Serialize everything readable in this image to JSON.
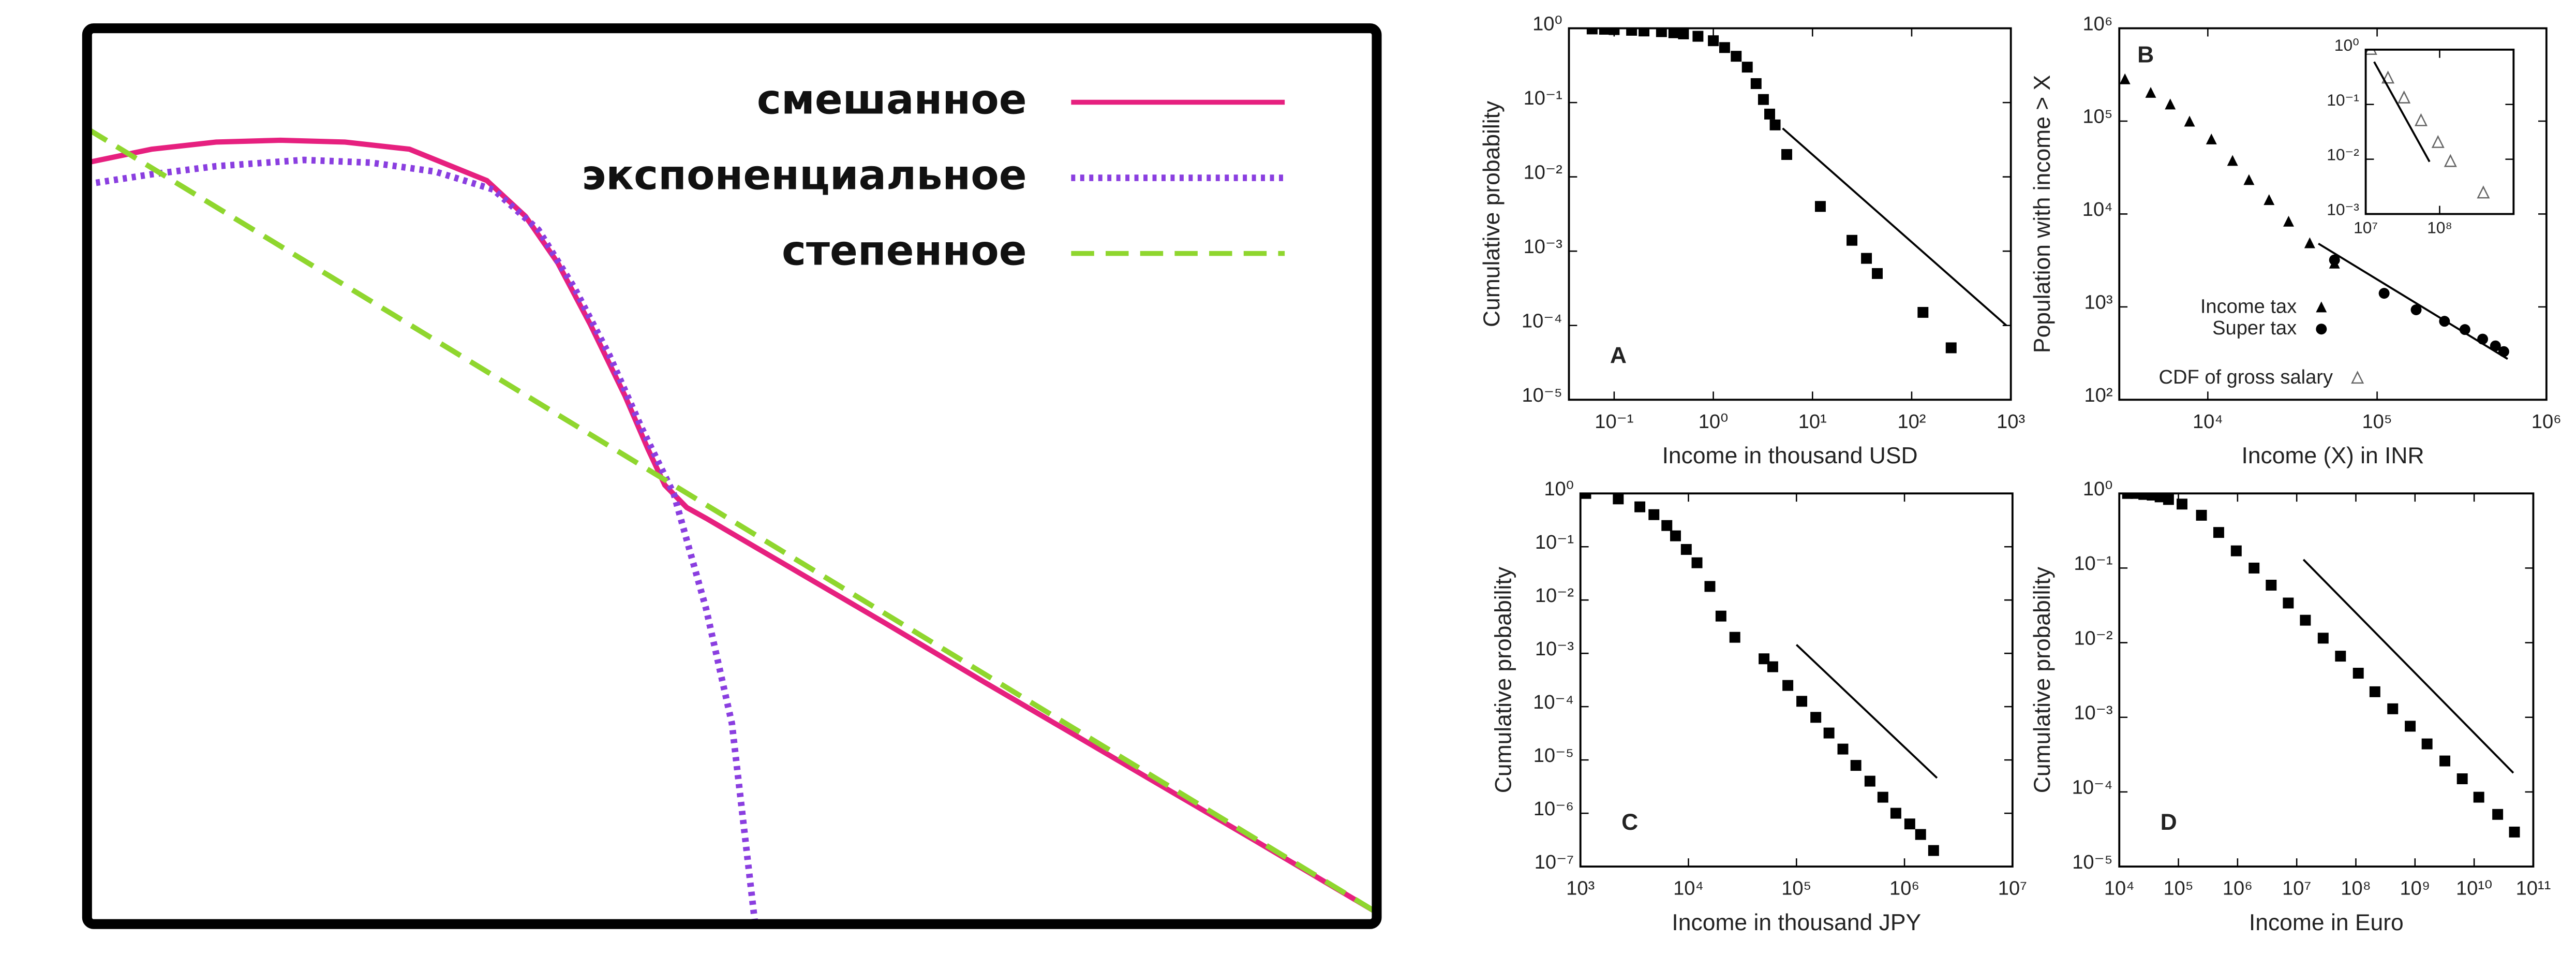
{
  "chart_data": [
    {
      "type": "line",
      "xlim": [
        0,
        100
      ],
      "ylim": [
        0,
        100
      ],
      "legend": "upper right",
      "series": [
        {
          "name": "смешанное",
          "color": "#e6207f",
          "style": "solid",
          "x": [
            0,
            5,
            10,
            15,
            20,
            25,
            31,
            34,
            36.5,
            39,
            41.7,
            43.5,
            44.8,
            46.5,
            48,
            55,
            62,
            69.7,
            76,
            82.4,
            90,
            100
          ],
          "values": [
            85,
            86.5,
            87.3,
            87.5,
            87.3,
            86.5,
            83,
            79,
            73.8,
            67,
            59,
            53,
            49,
            46.5,
            45.3,
            39.4,
            33.5,
            26.9,
            21.6,
            16.2,
            9.8,
            1.3
          ]
        },
        {
          "name": "экспоненциальное",
          "color": "#8a3ee0",
          "style": "dotted",
          "x": [
            0,
            5,
            10,
            16.8,
            22,
            27,
            31.5,
            35,
            37.8,
            40.5,
            43,
            45.5,
            48,
            50,
            51.8
          ],
          "values": [
            82.6,
            83.7,
            84.6,
            85.3,
            85,
            84,
            82,
            77.5,
            71,
            63.5,
            55.4,
            48,
            35.2,
            22.4,
            0
          ]
        },
        {
          "name": "степенное",
          "color": "#8fd62e",
          "style": "dashed",
          "x": [
            0,
            100
          ],
          "values": [
            88.8,
            1.3
          ]
        }
      ]
    },
    {
      "type": "scatter",
      "panel_label": "A",
      "xlabel": "Income in thousand USD",
      "ylabel": "Cumulative probability",
      "xscale": "log",
      "yscale": "log",
      "xlim": [
        0.035,
        1000
      ],
      "ylim": [
        1e-05,
        1
      ],
      "xticks": [
        {
          "value": 0.1,
          "label": "10⁻¹"
        },
        {
          "value": 1,
          "label": "10⁰"
        },
        {
          "value": 10,
          "label": "10¹"
        },
        {
          "value": 100,
          "label": "10²"
        },
        {
          "value": 1000,
          "label": "10³"
        }
      ],
      "yticks": [
        {
          "value": 1e-05,
          "label": "10⁻⁵"
        },
        {
          "value": 0.0001,
          "label": "10⁻⁴"
        },
        {
          "value": 0.001,
          "label": "10⁻³"
        },
        {
          "value": 0.01,
          "label": "10⁻²"
        },
        {
          "value": 0.1,
          "label": "10⁻¹"
        },
        {
          "value": 1,
          "label": "10⁰"
        }
      ],
      "series": [
        {
          "marker": "square",
          "color": "#000000",
          "x": [
            0.06,
            0.08,
            0.1,
            0.15,
            0.2,
            0.3,
            0.4,
            0.5,
            0.7,
            1.0,
            1.3,
            1.7,
            2.2,
            2.7,
            3.2,
            3.7,
            4.2,
            5.5,
            12,
            25,
            35,
            45,
            130,
            250
          ],
          "values": [
            0.98,
            0.97,
            0.96,
            0.94,
            0.92,
            0.9,
            0.87,
            0.84,
            0.78,
            0.68,
            0.55,
            0.42,
            0.3,
            0.18,
            0.11,
            0.07,
            0.05,
            0.02,
            0.004,
            0.0014,
            0.0008,
            0.0005,
            0.00015,
            5e-05
          ]
        },
        {
          "marker": "line",
          "color": "#000000",
          "x": [
            5,
            900
          ],
          "values": [
            0.045,
            0.0001
          ]
        }
      ]
    },
    {
      "type": "scatter",
      "panel_label": "B",
      "xlabel": "Income (X) in INR",
      "ylabel": "Population with income > X",
      "xscale": "log",
      "yscale": "log",
      "xlim": [
        3000,
        1000000
      ],
      "ylim": [
        100,
        1000000
      ],
      "xticks": [
        {
          "value": 10000,
          "label": "10⁴"
        },
        {
          "value": 100000,
          "label": "10⁵"
        },
        {
          "value": 1000000,
          "label": "10⁶"
        }
      ],
      "yticks": [
        {
          "value": 100,
          "label": "10²"
        },
        {
          "value": 1000,
          "label": "10³"
        },
        {
          "value": 10000,
          "label": "10⁴"
        },
        {
          "value": 100000,
          "label": "10⁵"
        },
        {
          "value": 1000000,
          "label": "10⁶"
        }
      ],
      "series": [
        {
          "name": "Income tax",
          "marker": "triangle",
          "color": "#000000",
          "x": [
            3240,
            4600,
            6000,
            7800,
            10500,
            14000,
            17500,
            23000,
            30000,
            40000,
            56000
          ],
          "values": [
            280000,
            200000,
            150000,
            98000,
            63000,
            37000,
            23000,
            14000,
            8200,
            4800,
            2900
          ]
        },
        {
          "name": "Super tax",
          "marker": "circle",
          "color": "#000000",
          "x": [
            56000,
            110000,
            170000,
            250000,
            330000,
            420000,
            500000,
            560000
          ],
          "values": [
            3200,
            1400,
            930,
            700,
            570,
            450,
            380,
            330
          ]
        },
        {
          "marker": "line",
          "color": "#000000",
          "x": [
            45000,
            590000
          ],
          "values": [
            4800,
            275
          ]
        }
      ]
    },
    {
      "type": "scatter",
      "inset": true,
      "xscale": "log",
      "yscale": "log",
      "xlim": [
        10000000,
        1000000000
      ],
      "ylim": [
        0.001,
        1
      ],
      "xticks": [
        {
          "value": 10000000,
          "label": "10⁷"
        },
        {
          "value": 100000000,
          "label": "10⁸"
        }
      ],
      "yticks": [
        {
          "value": 0.001,
          "label": "10⁻³"
        },
        {
          "value": 0.01,
          "label": "10⁻²"
        },
        {
          "value": 0.1,
          "label": "10⁻¹"
        },
        {
          "value": 1,
          "label": "10⁰"
        }
      ],
      "series": [
        {
          "name": "CDF of gross salary",
          "marker": "open-triangle",
          "color": "#666666",
          "x": [
            11700000,
            20000000,
            33000000,
            56000000,
            95000000,
            140000000,
            390000000
          ],
          "values": [
            1,
            0.3,
            0.13,
            0.05,
            0.02,
            0.009,
            0.0024
          ]
        },
        {
          "marker": "line",
          "color": "#000000",
          "x": [
            13000000,
            73000000
          ],
          "values": [
            0.6,
            0.009
          ]
        }
      ]
    },
    {
      "type": "scatter",
      "panel_label": "C",
      "xlabel": "Income in thousand JPY",
      "ylabel": "Cumulative probability",
      "xscale": "log",
      "yscale": "log",
      "xlim": [
        1000,
        10000000
      ],
      "ylim": [
        1e-07,
        1
      ],
      "xticks": [
        {
          "value": 1000,
          "label": "10³"
        },
        {
          "value": 10000,
          "label": "10⁴"
        },
        {
          "value": 100000,
          "label": "10⁵"
        },
        {
          "value": 1000000,
          "label": "10⁶"
        },
        {
          "value": 10000000,
          "label": "10⁷"
        }
      ],
      "yticks": [
        {
          "value": 1e-07,
          "label": "10⁻⁷"
        },
        {
          "value": 1e-06,
          "label": "10⁻⁶"
        },
        {
          "value": 1e-05,
          "label": "10⁻⁵"
        },
        {
          "value": 0.0001,
          "label": "10⁻⁴"
        },
        {
          "value": 0.001,
          "label": "10⁻³"
        },
        {
          "value": 0.01,
          "label": "10⁻²"
        },
        {
          "value": 0.1,
          "label": "10⁻¹"
        },
        {
          "value": 1,
          "label": "10⁰"
        }
      ],
      "series": [
        {
          "marker": "square",
          "color": "#000000",
          "x": [
            1120,
            2240,
            3550,
            4790,
            6310,
            7590,
            9550,
            12000,
            15800,
            20000,
            26900,
            50100,
            60300,
            83200,
            112000,
            151000,
            200000,
            269000,
            355000,
            479000,
            631000,
            832000,
            1120000,
            1410000,
            1860000
          ],
          "values": [
            1,
            0.79,
            0.56,
            0.4,
            0.25,
            0.16,
            0.089,
            0.05,
            0.018,
            0.005,
            0.002,
            0.00079,
            0.00056,
            0.00025,
            0.000126,
            6.3e-05,
            3.2e-05,
            1.6e-05,
            7.9e-06,
            4e-06,
            2e-06,
            1e-06,
            6.3e-07,
            4e-07,
            2e-07
          ]
        },
        {
          "marker": "line",
          "color": "#000000",
          "x": [
            100000,
            2000000
          ],
          "values": [
            0.00145,
            4.6e-06
          ]
        }
      ]
    },
    {
      "type": "scatter",
      "panel_label": "D",
      "xlabel": "Income in Euro",
      "ylabel": "Cumulative probability",
      "xscale": "log",
      "yscale": "log",
      "xlim": [
        10000,
        100000000000
      ],
      "ylim": [
        1e-05,
        1
      ],
      "xticks": [
        {
          "value": 10000,
          "label": "10⁴"
        },
        {
          "value": 100000,
          "label": "10⁵"
        },
        {
          "value": 1000000,
          "label": "10⁶"
        },
        {
          "value": 10000000,
          "label": "10⁷"
        },
        {
          "value": 100000000,
          "label": "10⁸"
        },
        {
          "value": 1000000000,
          "label": "10⁹"
        },
        {
          "value": 10000000000,
          "label": "10¹⁰"
        },
        {
          "value": 100000000000,
          "label": "10¹¹"
        }
      ],
      "yticks": [
        {
          "value": 1e-05,
          "label": "10⁻⁵"
        },
        {
          "value": 0.0001,
          "label": "10⁻⁴"
        },
        {
          "value": 0.001,
          "label": "10⁻³"
        },
        {
          "value": 0.01,
          "label": "10⁻²"
        },
        {
          "value": 0.1,
          "label": "10⁻¹"
        },
        {
          "value": 1,
          "label": "10⁰"
        }
      ],
      "series": [
        {
          "marker": "square",
          "color": "#000000",
          "x": [
            13800,
            19000,
            26000,
            36000,
            49000,
            68000,
            115000,
            245000,
            480000,
            950000,
            1900000,
            3700000,
            7200000,
            14000000,
            28000000,
            55000000,
            110000000,
            210000000,
            420000000,
            830000000,
            1600000000,
            3200000000,
            6300000000,
            12000000000,
            25000000000,
            48000000000
          ],
          "values": [
            1,
            1,
            0.97,
            0.95,
            0.9,
            0.83,
            0.72,
            0.51,
            0.3,
            0.17,
            0.1,
            0.059,
            0.034,
            0.02,
            0.0115,
            0.0066,
            0.0039,
            0.0022,
            0.0013,
            0.00076,
            0.00044,
            0.00026,
            0.00015,
            8.5e-05,
            5e-05,
            2.9e-05
          ]
        },
        {
          "marker": "line",
          "color": "#000000",
          "x": [
            13000000,
            46000000000
          ],
          "values": [
            0.13,
            0.00018
          ]
        }
      ]
    }
  ]
}
